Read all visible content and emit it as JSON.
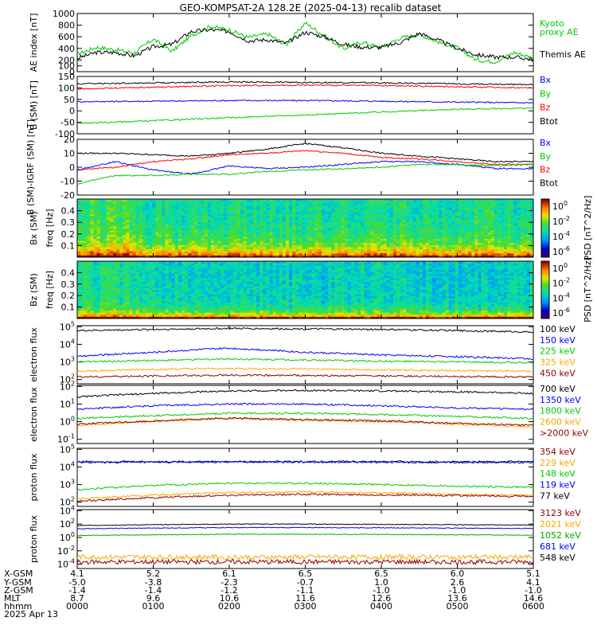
{
  "title": "GEO-KOMPSAT-2A 128.2E (2025-04-13) recalib dataset",
  "colors": {
    "black": "#000000",
    "blue": "#0000ff",
    "green": "#00cc00",
    "red": "#ff0000",
    "orange": "#ffa500",
    "darkred": "#8b0000",
    "kyoto": "#00ee00",
    "teal": "#00aa00"
  },
  "chart_data": [
    {
      "type": "line",
      "ylabel": "AE index [nT]",
      "ylim": [
        0,
        1000
      ],
      "yticks": [
        "0",
        "100",
        "200",
        "400",
        "600",
        "800",
        "1000"
      ],
      "legend": [
        {
          "label": "Kyoto\nproxy AE",
          "color": "green"
        },
        {
          "label": "Themis AE",
          "color": "black"
        }
      ],
      "series": [
        {
          "name": "Kyoto proxy AE",
          "color": "green",
          "x": [
            0,
            0.25,
            0.5,
            0.75,
            1.0,
            1.25,
            1.5,
            1.75,
            2.0,
            2.25,
            2.5,
            2.75,
            3.0,
            3.25,
            3.5,
            3.75,
            4.0,
            4.25,
            4.5,
            4.75,
            5.0,
            5.25,
            5.5,
            5.75,
            6.0
          ],
          "y": [
            300,
            420,
            380,
            320,
            560,
            350,
            620,
            780,
            720,
            590,
            650,
            460,
            840,
            620,
            390,
            510,
            410,
            580,
            640,
            510,
            410,
            200,
            170,
            330,
            240
          ]
        },
        {
          "name": "Themis AE",
          "color": "black",
          "x": [
            0,
            0.25,
            0.5,
            0.75,
            1.0,
            1.25,
            1.5,
            1.75,
            2.0,
            2.25,
            2.5,
            2.75,
            3.0,
            3.25,
            3.5,
            3.75,
            4.0,
            4.25,
            4.5,
            4.75,
            5.0,
            5.25,
            5.5,
            5.75,
            6.0
          ],
          "y": [
            230,
            330,
            330,
            270,
            430,
            470,
            690,
            720,
            690,
            530,
            550,
            490,
            680,
            600,
            470,
            420,
            420,
            500,
            660,
            540,
            400,
            290,
            250,
            250,
            210
          ]
        }
      ]
    },
    {
      "type": "line",
      "ylabel": "B (SM) [nT]",
      "ylim": [
        -100,
        150
      ],
      "yticks": [
        "-100",
        "-50",
        "0",
        "50",
        "100",
        "150"
      ],
      "legend": [
        {
          "label": "Bx",
          "color": "blue"
        },
        {
          "label": "By",
          "color": "green"
        },
        {
          "label": "Bz",
          "color": "red"
        },
        {
          "label": "Btot",
          "color": "black"
        }
      ],
      "series": [
        {
          "name": "Bx",
          "color": "blue",
          "x": [
            0,
            1,
            2,
            3,
            4,
            5,
            6
          ],
          "y": [
            40,
            42,
            45,
            45,
            42,
            38,
            35
          ]
        },
        {
          "name": "By",
          "color": "green",
          "x": [
            0,
            1,
            2,
            3,
            4,
            5,
            6
          ],
          "y": [
            -55,
            -43,
            -30,
            -18,
            -5,
            7,
            12
          ]
        },
        {
          "name": "Bz",
          "color": "red",
          "x": [
            0,
            1,
            2,
            3,
            4,
            5,
            6
          ],
          "y": [
            95,
            103,
            110,
            112,
            110,
            105,
            100
          ]
        },
        {
          "name": "Btot",
          "color": "black",
          "x": [
            0,
            1,
            2,
            3,
            4,
            5,
            6
          ],
          "y": [
            118,
            122,
            126,
            124,
            122,
            118,
            115
          ]
        }
      ]
    },
    {
      "type": "line",
      "ylabel": "B (SM)-IGRF (SM) [nT]",
      "ylim": [
        -20,
        20
      ],
      "yticks": [
        "-20",
        "-10",
        "0",
        "10",
        "20"
      ],
      "legend": [
        {
          "label": "Bx",
          "color": "blue"
        },
        {
          "label": "By",
          "color": "green"
        },
        {
          "label": "Bz",
          "color": "red"
        },
        {
          "label": "Btot",
          "color": "black"
        }
      ],
      "series": [
        {
          "name": "Btot",
          "color": "black",
          "x": [
            0,
            0.5,
            1,
            1.5,
            2,
            2.5,
            3,
            3.5,
            4,
            4.5,
            5,
            5.5,
            6
          ],
          "y": [
            10,
            10,
            9,
            8,
            10,
            13,
            17,
            14,
            10,
            8,
            6,
            4,
            4
          ]
        },
        {
          "name": "Bz",
          "color": "red",
          "x": [
            0,
            0.5,
            1,
            1.5,
            2,
            2.5,
            3,
            3.5,
            4,
            4.5,
            5,
            5.5,
            6
          ],
          "y": [
            -2,
            0,
            4,
            6,
            9,
            10,
            12,
            10,
            7,
            6,
            4,
            2,
            2
          ]
        },
        {
          "name": "Bx",
          "color": "blue",
          "x": [
            0,
            0.5,
            1,
            1.5,
            2,
            2.5,
            3,
            3.5,
            4,
            4.5,
            5,
            5.5,
            6
          ],
          "y": [
            -2,
            4,
            -2,
            -5,
            1,
            -1,
            0,
            2,
            4,
            4,
            2,
            -1,
            -1
          ]
        },
        {
          "name": "By",
          "color": "green",
          "x": [
            0,
            0.5,
            1,
            1.5,
            2,
            2.5,
            3,
            3.5,
            4,
            4.5,
            5,
            5.5,
            6
          ],
          "y": [
            -12,
            -6,
            -6,
            -5,
            -5,
            -3,
            -2,
            -1,
            0,
            2,
            2,
            1,
            2
          ]
        }
      ]
    },
    {
      "type": "heatmap",
      "ylabel": "Bx (SM) freq [Hz]",
      "ylim": [
        0,
        0.5
      ],
      "yticks": [
        "0.1",
        "0.2",
        "0.3",
        "0.4"
      ],
      "colorbar": {
        "label": "PSD [nT^2/Hz]",
        "ticks": [
          "10^0",
          "10^-2",
          "10^-4",
          "10^-6"
        ]
      }
    },
    {
      "type": "heatmap",
      "ylabel": "Bz (SM) freq [Hz]",
      "ylim": [
        0,
        0.5
      ],
      "yticks": [
        "0.1",
        "0.2",
        "0.3",
        "0.4"
      ],
      "colorbar": {
        "label": "PSD [nT^2/Hz]",
        "ticks": [
          "10^0",
          "10^-2",
          "10^-4",
          "10^-6"
        ]
      }
    },
    {
      "type": "line",
      "ylabel": "electron flux",
      "yscale": "log",
      "yticks": [
        "10^2",
        "10^3",
        "10^4",
        "10^5"
      ],
      "legend": [
        {
          "label": "100 keV",
          "color": "black"
        },
        {
          "label": "150 keV",
          "color": "blue"
        },
        {
          "label": "225 keV",
          "color": "green"
        },
        {
          "label": "325 keV",
          "color": "orange"
        },
        {
          "label": "450 keV",
          "color": "darkred"
        }
      ],
      "series": [
        {
          "name": "100 keV",
          "color": "black",
          "x": [
            0,
            1,
            2,
            3,
            4,
            5,
            6
          ],
          "y": [
            60000,
            70000,
            80000,
            75000,
            70000,
            60000,
            50000
          ]
        },
        {
          "name": "150 keV",
          "color": "blue",
          "x": [
            0,
            1,
            2,
            3,
            4,
            5,
            6
          ],
          "y": [
            2000,
            3500,
            6000,
            3500,
            2500,
            2000,
            1500
          ]
        },
        {
          "name": "225 keV",
          "color": "green",
          "x": [
            0,
            1,
            2,
            3,
            4,
            5,
            6
          ],
          "y": [
            1000,
            1200,
            1500,
            1300,
            1100,
            1000,
            900
          ]
        },
        {
          "name": "325 keV",
          "color": "orange",
          "x": [
            0,
            1,
            2,
            3,
            4,
            5,
            6
          ],
          "y": [
            300,
            380,
            420,
            400,
            350,
            320,
            300
          ]
        },
        {
          "name": "450 keV",
          "color": "darkred",
          "x": [
            0,
            1,
            2,
            3,
            4,
            5,
            6
          ],
          "y": [
            140,
            160,
            180,
            170,
            160,
            150,
            140
          ]
        }
      ]
    },
    {
      "type": "line",
      "ylabel": "electron flux",
      "yscale": "log",
      "yticks": [
        "10^-1",
        "10^0",
        "10^1",
        "10^2"
      ],
      "legend": [
        {
          "label": "700 keV",
          "color": "black"
        },
        {
          "label": "1350 keV",
          "color": "blue"
        },
        {
          "label": "1800 keV",
          "color": "green"
        },
        {
          "label": "2600 keV",
          "color": "orange"
        },
        {
          "label": ">2000 keV",
          "color": "darkred"
        }
      ],
      "series": [
        {
          "name": "700 keV",
          "color": "black",
          "x": [
            0,
            1,
            2,
            3,
            4,
            5,
            6
          ],
          "y": [
            25,
            40,
            55,
            60,
            55,
            50,
            40
          ]
        },
        {
          "name": "1350 keV",
          "color": "blue",
          "x": [
            0,
            1,
            2,
            3,
            4,
            5,
            6
          ],
          "y": [
            5,
            8,
            10,
            10,
            8,
            6,
            5
          ]
        },
        {
          "name": "1800 keV",
          "color": "green",
          "x": [
            0,
            1,
            2,
            3,
            4,
            5,
            6
          ],
          "y": [
            1.5,
            2.2,
            3,
            3,
            2.5,
            2,
            1.5
          ]
        },
        {
          "name": "2600 keV",
          "color": "orange",
          "x": [
            0,
            1,
            2,
            3,
            4,
            5,
            6
          ],
          "y": [
            0.6,
            1,
            1.5,
            1.2,
            1,
            0.7,
            0.5
          ]
        },
        {
          "name": ">2000 keV",
          "color": "darkred",
          "x": [
            0,
            1,
            2,
            3,
            4,
            5,
            6
          ],
          "y": [
            0.7,
            1.1,
            1.6,
            1.3,
            1.1,
            0.8,
            0.6
          ]
        }
      ]
    },
    {
      "type": "line",
      "ylabel": "proton flux",
      "yscale": "log",
      "yticks": [
        "10^2",
        "10^3",
        "10^4",
        "10^5"
      ],
      "legend": [
        {
          "label": "354 keV",
          "color": "darkred"
        },
        {
          "label": "229 keV",
          "color": "orange"
        },
        {
          "label": "148 keV",
          "color": "green"
        },
        {
          "label": "119 keV",
          "color": "blue"
        },
        {
          "label": "77 keV",
          "color": "black"
        }
      ],
      "series": [
        {
          "name": "77 keV",
          "color": "black",
          "x": [
            0,
            1,
            2,
            3,
            4,
            5,
            6
          ],
          "y": [
            20000,
            20000,
            20000,
            20000,
            20000,
            20000,
            20000
          ]
        },
        {
          "name": "119 keV",
          "color": "blue",
          "x": [
            0,
            1,
            2,
            3,
            4,
            5,
            6
          ],
          "y": [
            18000,
            18500,
            19000,
            19000,
            18500,
            18000,
            18000
          ]
        },
        {
          "name": "148 keV",
          "color": "green",
          "x": [
            0,
            1,
            2,
            3,
            4,
            5,
            6
          ],
          "y": [
            500,
            900,
            1200,
            1200,
            1000,
            800,
            700
          ]
        },
        {
          "name": "229 keV",
          "color": "orange",
          "x": [
            0,
            1,
            2,
            3,
            4,
            5,
            6
          ],
          "y": [
            150,
            250,
            350,
            380,
            330,
            280,
            250
          ]
        },
        {
          "name": "354 keV",
          "color": "darkred",
          "x": [
            0,
            1,
            2,
            3,
            4,
            5,
            6
          ],
          "y": [
            110,
            180,
            250,
            280,
            260,
            240,
            210
          ]
        }
      ]
    },
    {
      "type": "line",
      "ylabel": "proton flux",
      "yscale": "log",
      "yticks": [
        "10^-4",
        "10^-2",
        "10^0",
        "10^2",
        "10^4"
      ],
      "legend": [
        {
          "label": "3123 keV",
          "color": "darkred"
        },
        {
          "label": "2021 keV",
          "color": "orange"
        },
        {
          "label": "1052 keV",
          "color": "teal"
        },
        {
          "label": "681 keV",
          "color": "blue"
        },
        {
          "label": "548 keV",
          "color": "black"
        }
      ],
      "series": [
        {
          "name": "548 keV",
          "color": "black",
          "x": [
            0,
            1,
            2,
            3,
            4,
            5,
            6
          ],
          "y": [
            60,
            80,
            100,
            100,
            90,
            80,
            70
          ]
        },
        {
          "name": "681 keV",
          "color": "blue",
          "x": [
            0,
            1,
            2,
            3,
            4,
            5,
            6
          ],
          "y": [
            20,
            25,
            30,
            30,
            28,
            25,
            22
          ]
        },
        {
          "name": "1052 keV",
          "color": "teal",
          "x": [
            0,
            1,
            2,
            3,
            4,
            5,
            6
          ],
          "y": [
            2,
            2.5,
            3,
            3,
            2.8,
            2.5,
            2.2
          ]
        },
        {
          "name": "2021 keV",
          "color": "orange",
          "x": [
            0,
            1,
            2,
            3,
            4,
            5,
            6
          ],
          "y": [
            0.0012,
            0.0012,
            0.0012,
            0.0012,
            0.0012,
            0.0012,
            0.0012
          ]
        },
        {
          "name": "3123 keV",
          "color": "darkred",
          "x": [
            0,
            1,
            2,
            3,
            4,
            5,
            6
          ],
          "y": [
            0.00022,
            0.00022,
            0.00022,
            0.00022,
            0.00022,
            0.00022,
            0.00022
          ]
        }
      ]
    }
  ],
  "x_axis": {
    "row_labels": [
      "X-GSM",
      "Y-GSM",
      "Z-GSM",
      "MLT",
      "hhmm",
      "2025 Apr 13"
    ],
    "columns": [
      {
        "xgsm": "4.1",
        "ygsm": "-5.0",
        "zgsm": "-1.4",
        "mlt": "8.7",
        "hhmm": "0000"
      },
      {
        "xgsm": "5.2",
        "ygsm": "-3.8",
        "zgsm": "-1.4",
        "mlt": "9.6",
        "hhmm": "0100"
      },
      {
        "xgsm": "6.1",
        "ygsm": "-2.3",
        "zgsm": "-1.2",
        "mlt": "10.6",
        "hhmm": "0200"
      },
      {
        "xgsm": "6.5",
        "ygsm": "-0.7",
        "zgsm": "-1.1",
        "mlt": "11.6",
        "hhmm": "0300"
      },
      {
        "xgsm": "6.5",
        "ygsm": "1.0",
        "zgsm": "-1.0",
        "mlt": "12.6",
        "hhmm": "0400"
      },
      {
        "xgsm": "6.0",
        "ygsm": "2.6",
        "zgsm": "-1.0",
        "mlt": "13.6",
        "hhmm": "0500"
      },
      {
        "xgsm": "5.1",
        "ygsm": "4.1",
        "zgsm": "-1.0",
        "mlt": "14.6",
        "hhmm": "0600"
      }
    ]
  }
}
